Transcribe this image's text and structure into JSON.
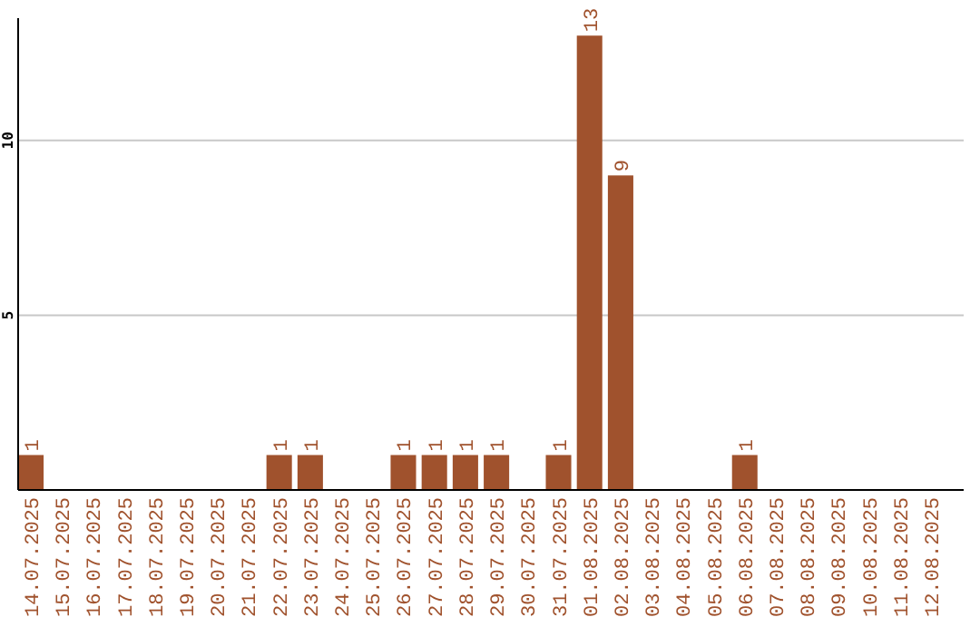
{
  "chart_data": {
    "type": "bar",
    "categories": [
      "14.07.2025",
      "15.07.2025",
      "16.07.2025",
      "17.07.2025",
      "18.07.2025",
      "19.07.2025",
      "20.07.2025",
      "21.07.2025",
      "22.07.2025",
      "23.07.2025",
      "24.07.2025",
      "25.07.2025",
      "26.07.2025",
      "27.07.2025",
      "28.07.2025",
      "29.07.2025",
      "30.07.2025",
      "31.07.2025",
      "01.08.2025",
      "02.08.2025",
      "03.08.2025",
      "04.08.2025",
      "05.08.2025",
      "06.08.2025",
      "07.08.2025",
      "08.08.2025",
      "09.08.2025",
      "10.08.2025",
      "11.08.2025",
      "12.08.2025"
    ],
    "values": [
      1,
      null,
      null,
      null,
      null,
      null,
      null,
      null,
      1,
      1,
      null,
      null,
      1,
      1,
      1,
      1,
      null,
      1,
      13,
      9,
      null,
      null,
      null,
      1,
      null,
      null,
      null,
      null,
      null,
      null
    ],
    "color": "#a0522d",
    "ylim": [
      0,
      13.5
    ],
    "yticks": [
      5,
      10
    ],
    "grid": "y",
    "data_labels": true
  }
}
